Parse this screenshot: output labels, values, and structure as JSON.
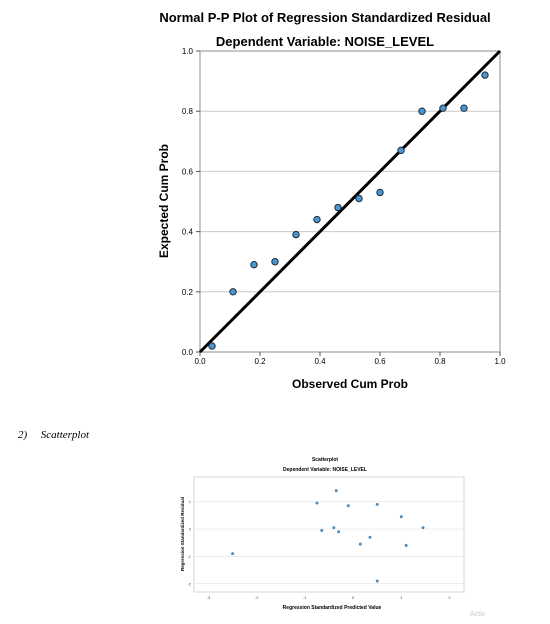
{
  "pp_plot": {
    "chart_data": {
      "type": "scatter",
      "title": "Normal P-P Plot of Regression Standardized Residual",
      "subtitle": "Dependent Variable: NOISE_LEVEL",
      "xlabel": "Observed Cum Prob",
      "ylabel": "Expected Cum Prob",
      "xlim": [
        0,
        1
      ],
      "ylim": [
        0,
        1
      ],
      "x_ticks": [
        "0.0",
        "0.2",
        "0.4",
        "0.6",
        "0.8",
        "1.0"
      ],
      "y_ticks": [
        "0.0",
        "0.2",
        "0.4",
        "0.6",
        "0.8",
        "1.0"
      ],
      "grid": "horizontal",
      "reference_line": [
        [
          0,
          0
        ],
        [
          1,
          1
        ]
      ],
      "points": [
        {
          "x": 0.04,
          "y": 0.02
        },
        {
          "x": 0.11,
          "y": 0.2
        },
        {
          "x": 0.18,
          "y": 0.29
        },
        {
          "x": 0.25,
          "y": 0.3
        },
        {
          "x": 0.32,
          "y": 0.39
        },
        {
          "x": 0.39,
          "y": 0.44
        },
        {
          "x": 0.46,
          "y": 0.48
        },
        {
          "x": 0.53,
          "y": 0.51
        },
        {
          "x": 0.6,
          "y": 0.53
        },
        {
          "x": 0.67,
          "y": 0.67
        },
        {
          "x": 0.74,
          "y": 0.8
        },
        {
          "x": 0.81,
          "y": 0.81
        },
        {
          "x": 0.88,
          "y": 0.81
        },
        {
          "x": 0.95,
          "y": 0.92
        }
      ],
      "colors": {
        "point_fill": "#4a98d3",
        "point_stroke": "#1c2a3a",
        "line": "#000000",
        "grid": "#c8c8c8"
      }
    }
  },
  "section_heading": {
    "number": "2)",
    "label": "Scatterplot"
  },
  "scatterplot": {
    "chart_data": {
      "type": "scatter",
      "title": "Scatterplot",
      "subtitle": "Dependent Variable: NOISE_LEVEL",
      "xlabel": "Regression Standardized Predicted Value",
      "ylabel": "Regression Standardized Residual",
      "xlim": [
        -3.3,
        2.3
      ],
      "ylim": [
        -2.3,
        1.9
      ],
      "x_ticks": [
        "-3",
        "-2",
        "-1",
        "0",
        "1",
        "2"
      ],
      "y_ticks": [
        "1",
        "0",
        "-1",
        "-2"
      ],
      "grid": "horizontal",
      "points": [
        {
          "x": -2.5,
          "y": -0.9
        },
        {
          "x": -0.75,
          "y": 0.95
        },
        {
          "x": -0.65,
          "y": -0.05
        },
        {
          "x": -0.4,
          "y": 0.05
        },
        {
          "x": -0.35,
          "y": 1.4
        },
        {
          "x": -0.3,
          "y": -0.1
        },
        {
          "x": -0.1,
          "y": 0.85
        },
        {
          "x": 0.15,
          "y": -0.55
        },
        {
          "x": 0.35,
          "y": -0.3
        },
        {
          "x": 0.5,
          "y": 0.9
        },
        {
          "x": 0.5,
          "y": -1.9
        },
        {
          "x": 1.0,
          "y": 0.45
        },
        {
          "x": 1.1,
          "y": -0.6
        },
        {
          "x": 1.45,
          "y": 0.05
        }
      ],
      "colors": {
        "point_fill": "#4a98d3",
        "grid": "#dcdcdc"
      }
    }
  },
  "watermark": "Activ"
}
